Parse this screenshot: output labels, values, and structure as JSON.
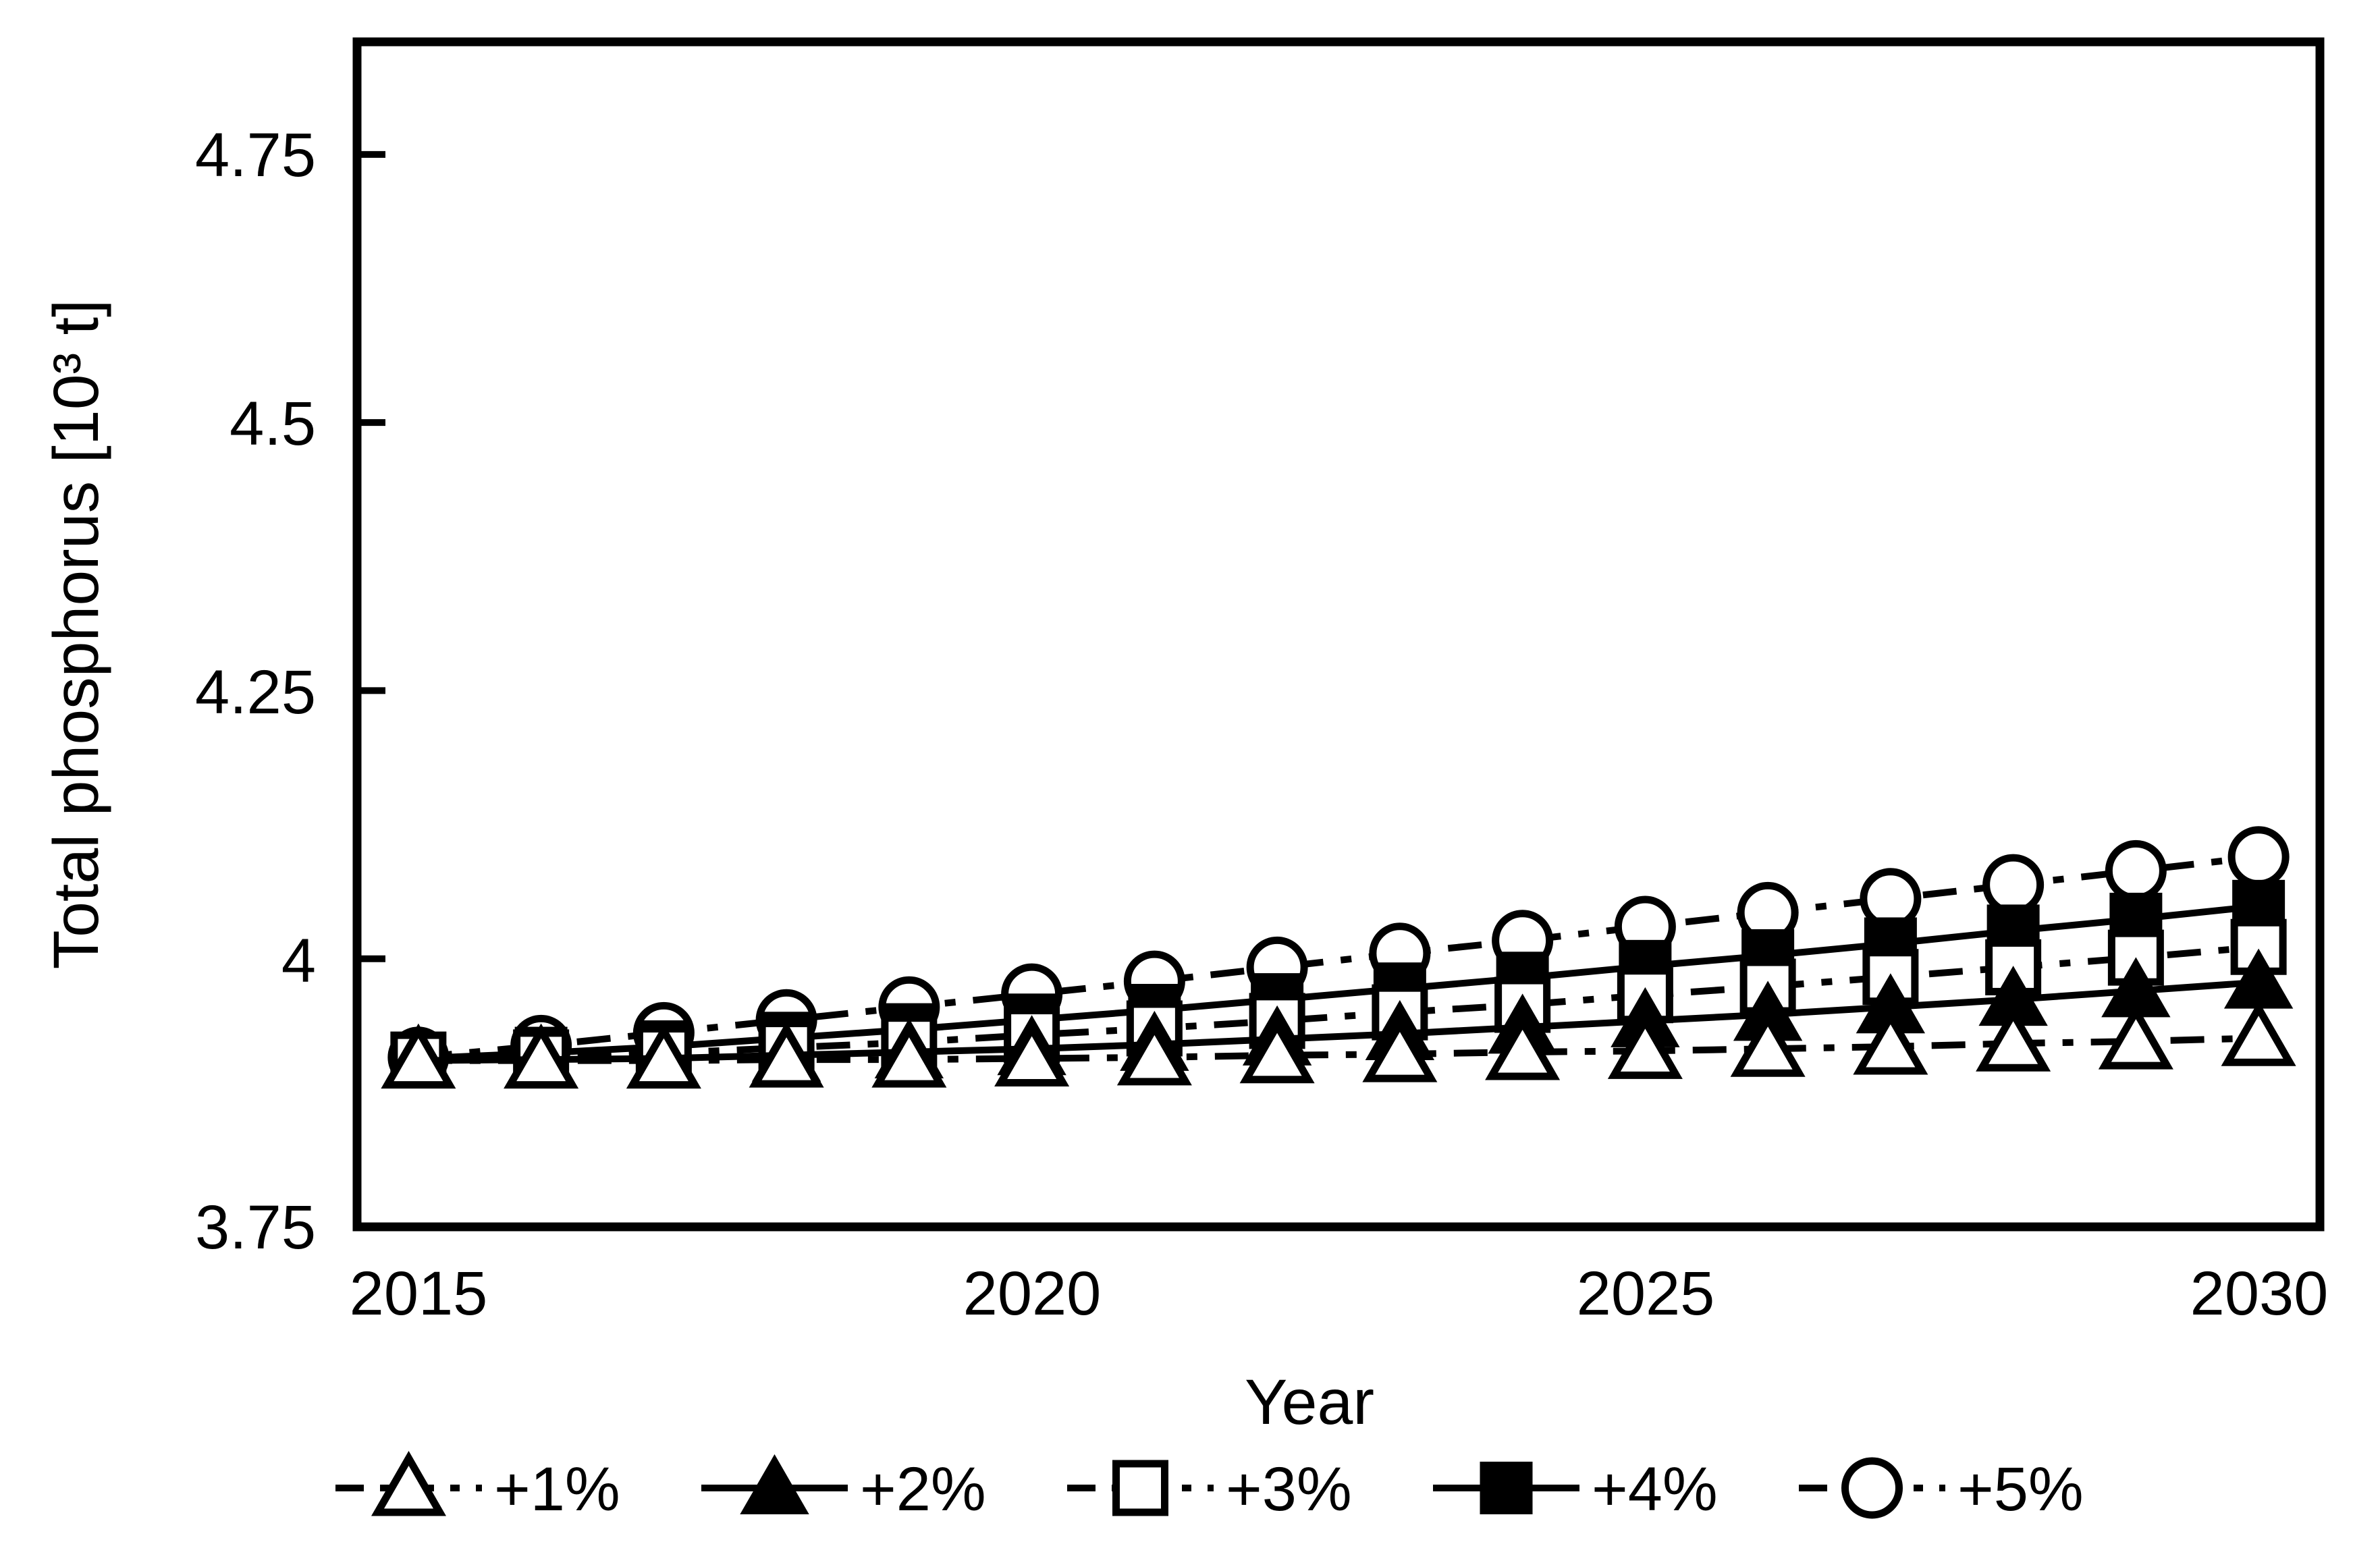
{
  "figure": {
    "background_color": "#ffffff",
    "ink_color": "#000000"
  },
  "chart_data": {
    "type": "line",
    "title": "",
    "xlabel": "Year",
    "ylabel": "Total phosphorus [10³ t]",
    "grid": "off",
    "legend_position": "bottom",
    "x": [
      2015,
      2016,
      2017,
      2018,
      2019,
      2020,
      2021,
      2022,
      2023,
      2024,
      2025,
      2026,
      2027,
      2028,
      2029,
      2030
    ],
    "xtick_labels": [
      "2015",
      "2020",
      "2025",
      "2030"
    ],
    "xtick_values": [
      2015,
      2020,
      2025,
      2030
    ],
    "ytick_labels": [
      "3.75",
      "4",
      "4.25",
      "4.5",
      "4.75"
    ],
    "ytick_values": [
      3.75,
      4.0,
      4.25,
      4.5,
      4.75
    ],
    "ylim": [
      3.75,
      4.855
    ],
    "series": [
      {
        "name": "+1%",
        "marker": "triangle-open",
        "line_style": "dashed",
        "values": [
          3.905,
          3.905,
          3.905,
          3.906,
          3.906,
          3.907,
          3.908,
          3.91,
          3.911,
          3.913,
          3.914,
          3.916,
          3.918,
          3.921,
          3.923,
          3.926
        ]
      },
      {
        "name": "+2%",
        "marker": "triangle-filled",
        "line_style": "solid",
        "values": [
          3.905,
          3.906,
          3.907,
          3.91,
          3.913,
          3.916,
          3.92,
          3.925,
          3.93,
          3.936,
          3.942,
          3.948,
          3.955,
          3.962,
          3.97,
          3.978
        ]
      },
      {
        "name": "+3%",
        "marker": "square-open",
        "line_style": "dashed",
        "values": [
          3.906,
          3.908,
          3.912,
          3.917,
          3.922,
          3.929,
          3.935,
          3.942,
          3.95,
          3.957,
          3.966,
          3.974,
          3.983,
          3.992,
          4.001,
          4.011
        ]
      },
      {
        "name": "+4%",
        "marker": "square-filled",
        "line_style": "solid",
        "values": [
          3.907,
          3.912,
          3.918,
          3.926,
          3.934,
          3.943,
          3.952,
          3.962,
          3.972,
          3.982,
          3.993,
          4.003,
          4.014,
          4.026,
          4.037,
          4.049
        ]
      },
      {
        "name": "+5%",
        "marker": "circle-open",
        "line_style": "dashed",
        "values": [
          3.908,
          3.919,
          3.931,
          3.943,
          3.955,
          3.967,
          3.979,
          3.992,
          4.005,
          4.017,
          4.03,
          4.043,
          4.056,
          4.069,
          4.082,
          4.095
        ]
      }
    ]
  }
}
